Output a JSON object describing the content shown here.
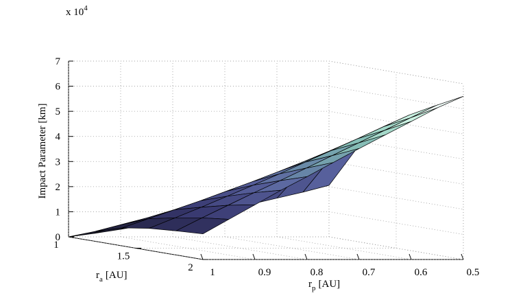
{
  "chart_data": {
    "type": "surface3d",
    "title": "",
    "zlabel": "Impact Parameter [km]",
    "xlabel": {
      "main": "r",
      "sub": "p",
      "unit": "[AU]"
    },
    "ylabel": {
      "main": "r",
      "sub": "a",
      "unit": "[AU]"
    },
    "zlim": [
      0,
      70000
    ],
    "z_exponent_label": {
      "base": "x 10",
      "exp": "4"
    },
    "z_ticks": [
      0,
      1,
      2,
      3,
      4,
      5,
      6,
      7
    ],
    "rp_ticks": [
      "1",
      "0.9",
      "0.8",
      "0.7",
      "0.6",
      "0.5"
    ],
    "ra_ticks": [
      "1",
      "1.5",
      "2"
    ],
    "rp": [
      1.0,
      0.95,
      0.9,
      0.85,
      0.8,
      0.75,
      0.7,
      0.65,
      0.6,
      0.55,
      0.5
    ],
    "ra": [
      1.0,
      1.2,
      1.4,
      1.6,
      1.8,
      2.0
    ],
    "z": [
      [
        0,
        1400,
        3000,
        4800,
        6600,
        8600,
        10800,
        13000,
        15400,
        17800,
        20500
      ],
      [
        4000,
        6700,
        9400,
        12200,
        15200,
        18400,
        21700,
        25200,
        29000,
        32700,
        36500
      ],
      [
        7200,
        10800,
        14400,
        18000,
        21800,
        25600,
        29600,
        33700,
        38000,
        42200,
        46600
      ],
      [
        8800,
        13000,
        17200,
        21600,
        26000,
        30500,
        35200,
        39800,
        44500,
        49300,
        54000
      ],
      [
        9600,
        14800,
        19800,
        24800,
        29600,
        34600,
        39600,
        44600,
        49600,
        54600,
        59600
      ],
      [
        10200,
        16000,
        21800,
        27600,
        33000,
        38600,
        44200,
        49600,
        55000,
        60400,
        65000
      ]
    ],
    "colormap": "bone-like (dark navy to pale cyan)",
    "grid": true
  }
}
